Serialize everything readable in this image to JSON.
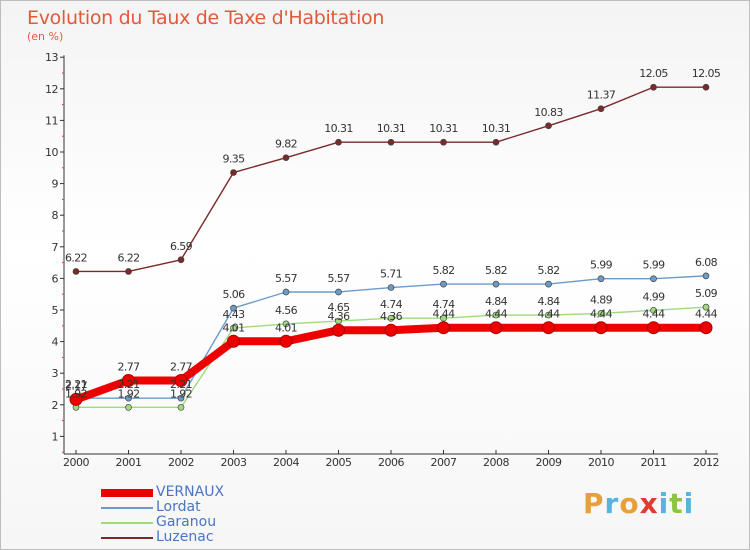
{
  "header": {
    "title": "Evolution du Taux de Taxe d'Habitation",
    "unit": "(en %)"
  },
  "brand": {
    "letters": [
      "P",
      "r",
      "o",
      "x",
      "i",
      "t",
      "i"
    ],
    "colors": [
      "#e8a13a",
      "#57b4e0",
      "#e8a13a",
      "#e23a2f",
      "#57b4e0",
      "#8cc63f",
      "#57b4e0"
    ]
  },
  "chart_data": {
    "type": "line",
    "title": "Evolution du Taux de Taxe d'Habitation",
    "ylabel": "(en %)",
    "xlabel": "",
    "x": [
      "2000",
      "2001",
      "2002",
      "2003",
      "2004",
      "2005",
      "2006",
      "2007",
      "2008",
      "2009",
      "2010",
      "2011",
      "2012"
    ],
    "ylim": [
      0,
      13
    ],
    "yticks": [
      "1",
      "2",
      "3",
      "4",
      "5",
      "6",
      "7",
      "8",
      "9",
      "10",
      "11",
      "12",
      "13"
    ],
    "legend_position": "bottom-left",
    "grid": false,
    "series": [
      {
        "name": "VERNAUX",
        "color": "#ee0000",
        "values": [
          2.17,
          2.77,
          2.77,
          4.01,
          4.01,
          4.36,
          4.36,
          4.44,
          4.44,
          4.44,
          4.44,
          4.44,
          4.44
        ],
        "labels": [
          "2.17",
          "2.77",
          "2.77",
          "4.01",
          "4.01",
          "4.36",
          "4.36",
          "4.44",
          "4.44",
          "4.44",
          "4.44",
          "4.44",
          "4.44"
        ]
      },
      {
        "name": "Lordat",
        "color": "#6c9bc8",
        "values": [
          2.21,
          2.21,
          2.21,
          5.06,
          5.57,
          5.57,
          5.71,
          5.82,
          5.82,
          5.82,
          5.99,
          5.99,
          6.08
        ],
        "labels": [
          "2.21",
          "2.21",
          "2.21",
          "5.06",
          "5.57",
          "5.57",
          "5.71",
          "5.82",
          "5.82",
          "5.82",
          "5.99",
          "5.99",
          "6.08"
        ]
      },
      {
        "name": "Garanou",
        "color": "#9fdb7c",
        "values": [
          1.92,
          1.92,
          1.92,
          4.43,
          4.56,
          4.65,
          4.74,
          4.74,
          4.84,
          4.84,
          4.89,
          4.99,
          5.09
        ],
        "labels": [
          "1.92",
          "1.92",
          "1.92",
          "4.43",
          "4.56",
          "4.65",
          "4.74",
          "4.74",
          "4.84",
          "4.84",
          "4.89",
          "4.99",
          "5.09"
        ]
      },
      {
        "name": "Luzenac",
        "color": "#7b2a2a",
        "values": [
          6.22,
          6.22,
          6.59,
          9.35,
          9.82,
          10.31,
          10.31,
          10.31,
          10.31,
          10.83,
          11.37,
          12.05,
          12.05
        ],
        "labels": [
          "6.22",
          "6.22",
          "6.59",
          "9.35",
          "9.82",
          "10.31",
          "10.31",
          "10.31",
          "10.31",
          "10.83",
          "11.37",
          "12.05",
          "12.05"
        ]
      }
    ]
  }
}
